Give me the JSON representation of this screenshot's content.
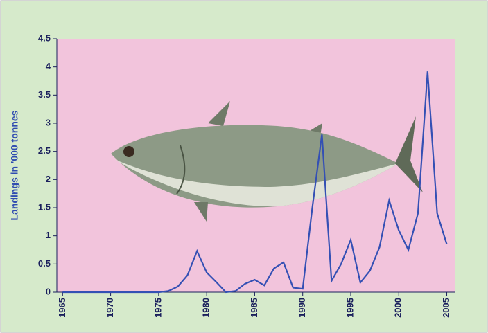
{
  "chart_data": {
    "type": "line",
    "y_label": "Landings in '000 tonnes",
    "x": [
      1965,
      1966,
      1967,
      1968,
      1969,
      1970,
      1971,
      1972,
      1973,
      1974,
      1975,
      1976,
      1977,
      1978,
      1979,
      1980,
      1981,
      1982,
      1983,
      1984,
      1985,
      1986,
      1987,
      1988,
      1989,
      1990,
      1991,
      1992,
      1993,
      1994,
      1995,
      1996,
      1997,
      1998,
      1999,
      2000,
      2001,
      2002,
      2003,
      2004,
      2005
    ],
    "series": [
      {
        "color": "#3450b4",
        "values": [
          0,
          0,
          0,
          0,
          0,
          0,
          0,
          0,
          0,
          0,
          0,
          0.02,
          0.1,
          0.3,
          0.73,
          0.35,
          0.18,
          0,
          0.02,
          0.15,
          0.22,
          0.12,
          0.42,
          0.53,
          0.08,
          0.06,
          1.5,
          2.8,
          0.2,
          0.5,
          0.93,
          0.17,
          0.38,
          0.8,
          1.63,
          1.1,
          0.75,
          1.4,
          3.92,
          1.4,
          0.85
        ]
      }
    ],
    "xlim": [
      1964.4,
      2005.9
    ],
    "xticks": [
      1965,
      1970,
      1975,
      1980,
      1985,
      1990,
      1995,
      2000,
      2005
    ],
    "ylim": [
      0,
      4.5
    ],
    "yticks": [
      0,
      0.5,
      1,
      1.5,
      2,
      2.5,
      3,
      3.5,
      4,
      4.5
    ],
    "background": "#d6eacb",
    "plot_background": "#f2c4dc"
  }
}
